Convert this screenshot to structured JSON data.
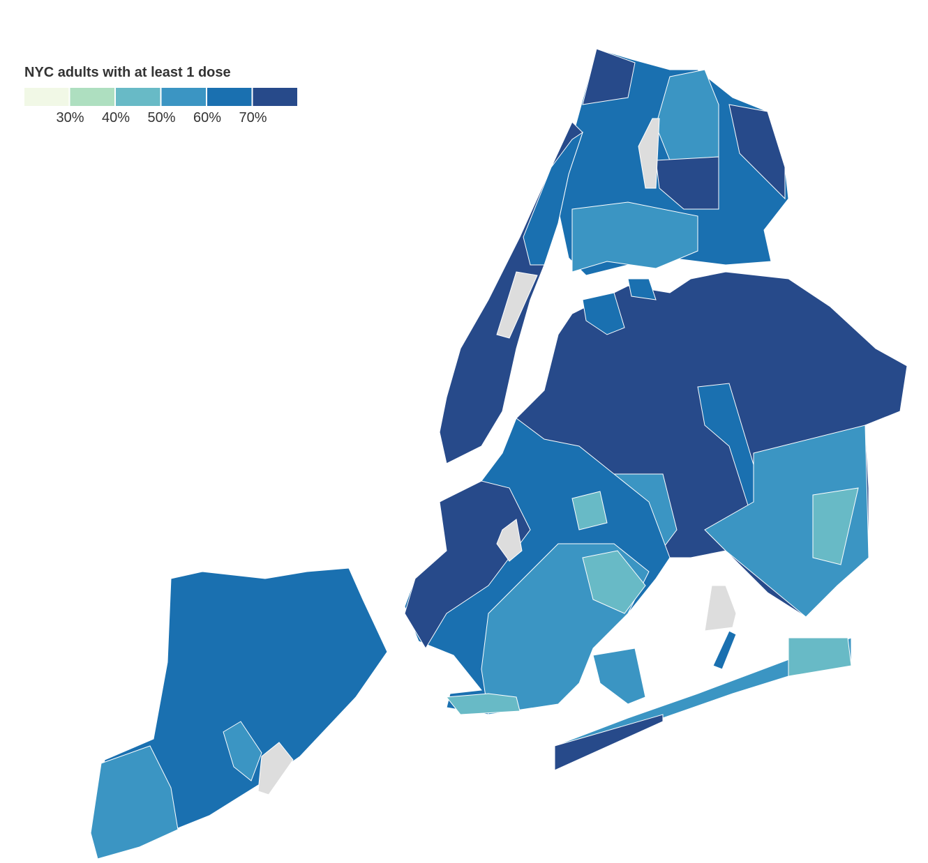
{
  "legend": {
    "title": "NYC adults with at least 1 dose",
    "colors": [
      "#f1f8e6",
      "#aedfc0",
      "#68bac6",
      "#3b95c3",
      "#1a70b0",
      "#274a8a"
    ],
    "ticks": [
      "30%",
      "40%",
      "50%",
      "60%",
      "70%"
    ]
  }
}
